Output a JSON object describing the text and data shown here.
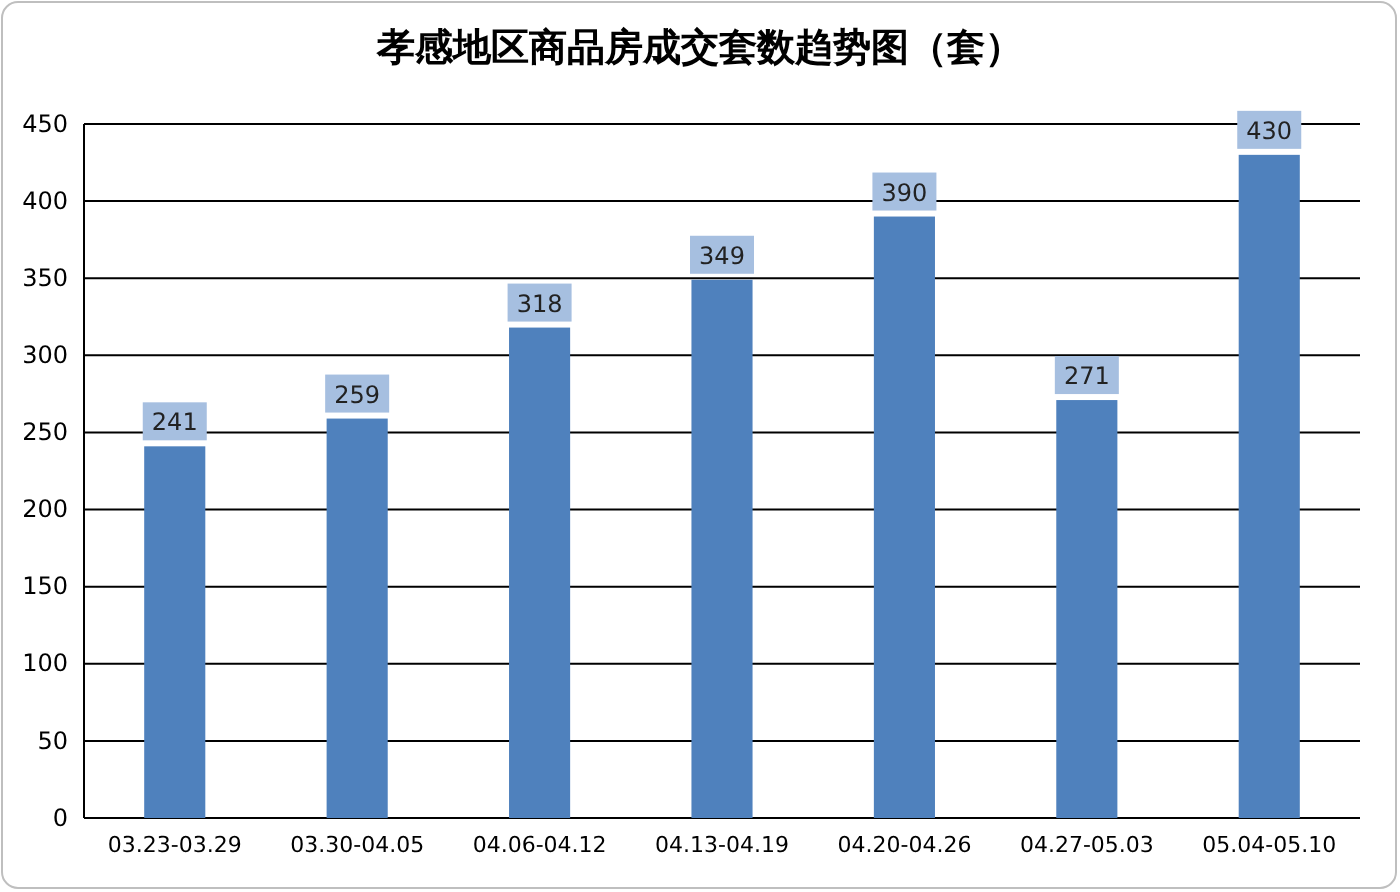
{
  "chart_data": {
    "type": "bar",
    "title": "孝感地区商品房成交套数趋势图（套）",
    "categories": [
      "03.23-03.29",
      "03.30-04.05",
      "04.06-04.12",
      "04.13-04.19",
      "04.20-04.26",
      "04.27-05.03",
      "05.04-05.10"
    ],
    "values": [
      241,
      259,
      318,
      349,
      390,
      271,
      430
    ],
    "color": "#4f81bd",
    "ylim": [
      0,
      450
    ],
    "yticks": [
      0,
      50,
      100,
      150,
      200,
      250,
      300,
      350,
      400,
      450
    ],
    "grid": "y",
    "data_labels": true
  }
}
